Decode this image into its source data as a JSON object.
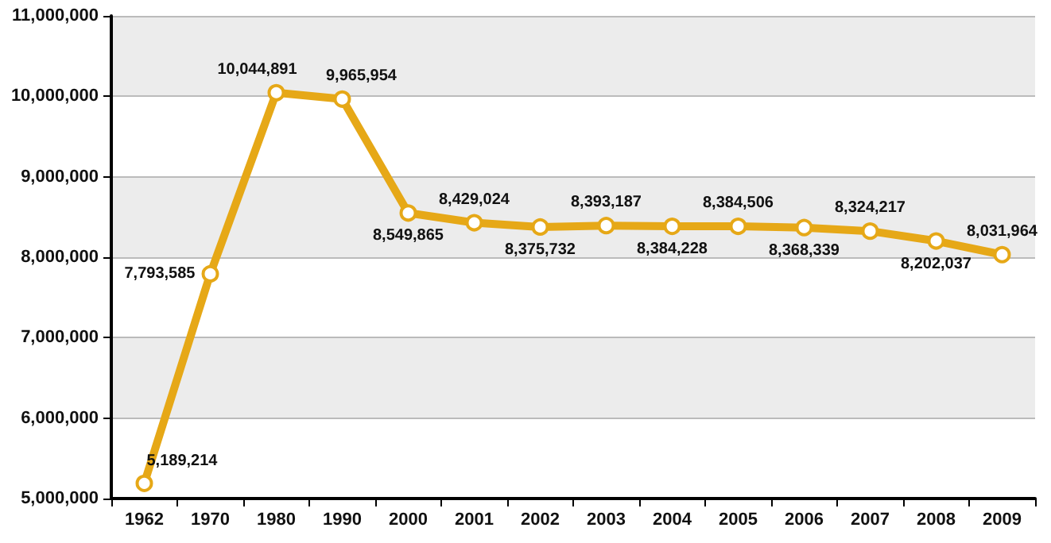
{
  "chart_data": {
    "type": "line",
    "categories": [
      "1962",
      "1970",
      "1980",
      "1990",
      "2000",
      "2001",
      "2002",
      "2003",
      "2004",
      "2005",
      "2006",
      "2007",
      "2008",
      "2009"
    ],
    "series": [
      {
        "color": "#e6a817",
        "values": [
          5189214,
          7793585,
          10044891,
          9965954,
          8549865,
          8429024,
          8375732,
          8393187,
          8384228,
          8384506,
          8368339,
          8324217,
          8202037,
          8031964
        ],
        "value_labels": [
          "5,189,214",
          "7,793,585",
          "10,044,891",
          "9,965,954",
          "8,549,865",
          "8,429,024",
          "8,375,732",
          "8,393,187",
          "8,384,228",
          "8,384,506",
          "8,368,339",
          "8,324,217",
          "8,202,037",
          "8,031,964"
        ]
      }
    ],
    "ylim": [
      5000000,
      11000000
    ],
    "yticks": [
      {
        "value": 5000000,
        "label": "5,000,000"
      },
      {
        "value": 6000000,
        "label": "6,000,000"
      },
      {
        "value": 7000000,
        "label": "7,000,000"
      },
      {
        "value": 8000000,
        "label": "8,000,000"
      },
      {
        "value": 9000000,
        "label": "9,000,000"
      },
      {
        "value": 10000000,
        "label": "10,000,000"
      },
      {
        "value": 11000000,
        "label": "11,000,000"
      }
    ],
    "grid": "y",
    "marker": "circle",
    "line_style": "solid"
  }
}
